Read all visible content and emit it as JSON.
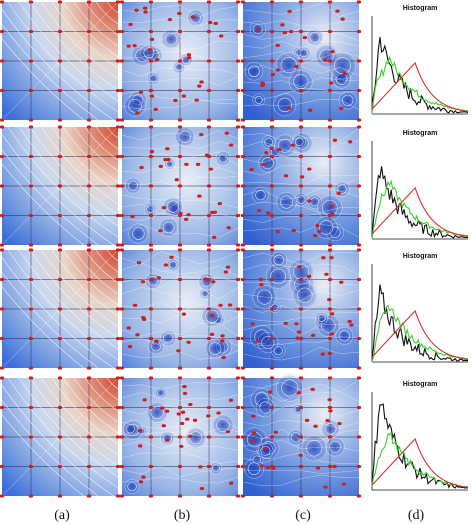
{
  "figure": {
    "column_labels": [
      "(a)",
      "(b)",
      "(c)",
      "(d)"
    ],
    "histogram_title": "Histogram",
    "rows": 4,
    "colors": {
      "field_low": "#3a6fd8",
      "field_mid": "#dfe7f1",
      "field_high": "#d2452a",
      "contour": "#ffffff",
      "critical_point": "#cc1f1f",
      "hist_black": "#111111",
      "hist_green": "#3bd12f",
      "hist_red": "#e0302a"
    }
  }
}
